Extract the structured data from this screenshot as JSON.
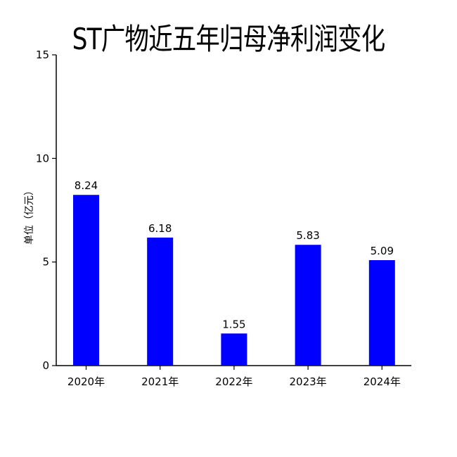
{
  "chart_data": {
    "type": "bar",
    "title": "ST广物近五年归母净利润变化",
    "categories": [
      "2020年",
      "2021年",
      "2022年",
      "2023年",
      "2024年"
    ],
    "values": [
      8.24,
      6.18,
      1.55,
      5.83,
      5.09
    ],
    "value_labels": [
      "8.24",
      "6.18",
      "1.55",
      "5.83",
      "5.09"
    ],
    "xlabel": "",
    "ylabel": "单位（亿元）",
    "ylim": [
      0,
      15
    ],
    "yticks": [
      0,
      5,
      10,
      15
    ],
    "ytick_labels": [
      "0",
      "5",
      "10",
      "15"
    ],
    "grid": false,
    "legend": "none",
    "bar_color": "#0000FF"
  }
}
